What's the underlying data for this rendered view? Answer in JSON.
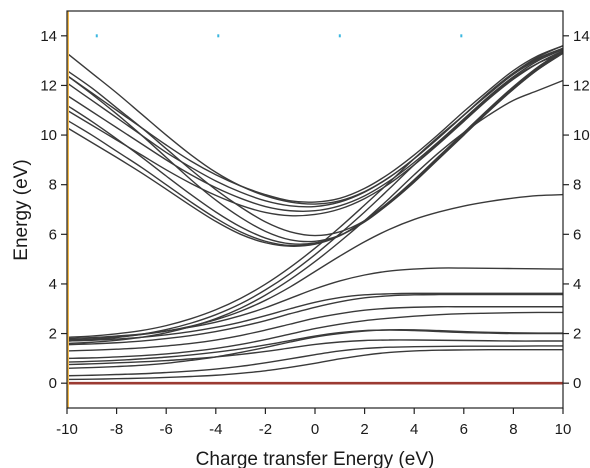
{
  "chart_data": {
    "type": "line",
    "title": "",
    "xlabel": "Charge transfer Energy (eV)",
    "ylabel": "Energy (eV)",
    "xlim": [
      -10,
      10
    ],
    "ylim": [
      -1,
      15
    ],
    "x_ticks": [
      -10,
      -8,
      -6,
      -4,
      -2,
      0,
      2,
      4,
      6,
      8,
      10
    ],
    "y_ticks": [
      0,
      2,
      4,
      6,
      8,
      10,
      12,
      14
    ],
    "right_y_ticks": [
      0,
      2,
      4,
      6,
      8,
      10,
      12,
      14
    ],
    "grid": false,
    "legend": "none",
    "colors": {
      "lines": "#3a3a3a",
      "ground_state": "#9b3a32",
      "left_edge": "#f2b84b",
      "markers": "#3bb7e0",
      "axes": "#222222"
    },
    "markers": {
      "x": [
        -8.8,
        -3.9,
        1.0,
        5.9
      ],
      "y": 14.0
    },
    "ground_state": {
      "x": [
        -10,
        10
      ],
      "y": [
        0,
        0
      ]
    },
    "x": [
      -10,
      -9,
      -8,
      -7,
      -6,
      -5,
      -4,
      -3,
      -2,
      -1,
      0,
      1,
      2,
      3,
      4,
      5,
      6,
      7,
      8,
      9,
      10
    ],
    "series": [
      {
        "values": [
          0.15,
          0.16,
          0.18,
          0.2,
          0.23,
          0.27,
          0.32,
          0.4,
          0.5,
          0.64,
          0.8,
          0.98,
          1.13,
          1.24,
          1.3,
          1.33,
          1.34,
          1.35,
          1.35,
          1.35,
          1.35
        ]
      },
      {
        "values": [
          0.3,
          0.32,
          0.35,
          0.38,
          0.43,
          0.49,
          0.57,
          0.68,
          0.82,
          0.98,
          1.15,
          1.3,
          1.4,
          1.45,
          1.47,
          1.48,
          1.49,
          1.49,
          1.49,
          1.5,
          1.5
        ]
      },
      {
        "values": [
          0.75,
          0.78,
          0.82,
          0.86,
          0.91,
          0.98,
          1.06,
          1.16,
          1.28,
          1.42,
          1.56,
          1.66,
          1.72,
          1.74,
          1.74,
          1.73,
          1.72,
          1.71,
          1.7,
          1.7,
          1.7
        ]
      },
      {
        "values": [
          0.85,
          0.88,
          0.92,
          0.98,
          1.05,
          1.14,
          1.25,
          1.38,
          1.54,
          1.72,
          1.9,
          2.04,
          2.12,
          2.14,
          2.12,
          2.08,
          2.04,
          2.02,
          2.0,
          2.0,
          2.0
        ]
      },
      {
        "values": [
          0.6,
          0.63,
          0.67,
          0.72,
          0.8,
          0.92,
          1.06,
          1.24,
          1.44,
          1.66,
          1.86,
          2.0,
          2.1,
          2.15,
          2.15,
          2.12,
          2.08,
          2.05,
          2.03,
          2.02,
          2.02
        ]
      },
      {
        "values": [
          1.0,
          1.02,
          1.06,
          1.11,
          1.18,
          1.28,
          1.4,
          1.56,
          1.76,
          1.98,
          2.2,
          2.38,
          2.52,
          2.62,
          2.7,
          2.76,
          2.8,
          2.82,
          2.84,
          2.85,
          2.85
        ]
      },
      {
        "values": [
          1.3,
          1.33,
          1.37,
          1.42,
          1.5,
          1.6,
          1.74,
          1.92,
          2.14,
          2.38,
          2.62,
          2.8,
          2.94,
          3.02,
          3.06,
          3.08,
          3.08,
          3.08,
          3.08,
          3.08,
          3.08
        ]
      },
      {
        "values": [
          1.55,
          1.58,
          1.63,
          1.7,
          1.8,
          1.92,
          2.08,
          2.28,
          2.52,
          2.8,
          3.06,
          3.28,
          3.44,
          3.52,
          3.56,
          3.57,
          3.57,
          3.57,
          3.57,
          3.57,
          3.57
        ]
      },
      {
        "values": [
          1.7,
          1.73,
          1.78,
          1.85,
          1.95,
          2.08,
          2.25,
          2.46,
          2.72,
          3.0,
          3.26,
          3.45,
          3.56,
          3.6,
          3.62,
          3.62,
          3.62,
          3.62,
          3.62,
          3.62,
          3.62
        ]
      },
      {
        "values": [
          1.8,
          1.84,
          1.9,
          1.98,
          2.1,
          2.26,
          2.46,
          2.72,
          3.04,
          3.42,
          3.8,
          4.12,
          4.36,
          4.52,
          4.6,
          4.64,
          4.64,
          4.63,
          4.62,
          4.61,
          4.6
        ]
      },
      {
        "values": [
          1.75,
          1.79,
          1.86,
          1.96,
          2.1,
          2.3,
          2.56,
          2.9,
          3.34,
          3.88,
          4.5,
          5.12,
          5.7,
          6.2,
          6.6,
          6.9,
          7.14,
          7.32,
          7.46,
          7.56,
          7.6
        ]
      },
      {
        "values": [
          1.6,
          1.65,
          1.73,
          1.85,
          2.03,
          2.28,
          2.6,
          3.02,
          3.55,
          4.18,
          4.9,
          5.7,
          6.55,
          7.45,
          8.4,
          9.3,
          10.1,
          10.8,
          11.4,
          11.8,
          12.2
        ]
      },
      {
        "values": [
          1.7,
          1.75,
          1.84,
          1.97,
          2.16,
          2.42,
          2.76,
          3.2,
          3.76,
          4.42,
          5.18,
          6.02,
          6.9,
          7.84,
          8.8,
          9.7,
          10.6,
          11.5,
          12.3,
          12.9,
          13.3
        ]
      },
      {
        "values": [
          1.85,
          1.9,
          1.99,
          2.12,
          2.32,
          2.6,
          2.96,
          3.42,
          3.99,
          4.67,
          5.44,
          6.28,
          7.18,
          8.1,
          9.05,
          9.95,
          10.8,
          11.7,
          12.5,
          13.1,
          13.5
        ]
      },
      {
        "values": [
          12.4,
          11.7,
          11.0,
          10.3,
          9.6,
          8.95,
          8.4,
          7.95,
          7.6,
          7.35,
          7.3,
          7.45,
          7.85,
          8.45,
          9.2,
          10.05,
          10.95,
          11.8,
          12.6,
          13.2,
          13.6
        ]
      },
      {
        "values": [
          12.1,
          11.4,
          10.7,
          10.0,
          9.3,
          8.7,
          8.15,
          7.7,
          7.35,
          7.15,
          7.12,
          7.3,
          7.7,
          8.3,
          9.05,
          9.9,
          10.8,
          11.65,
          12.45,
          13.05,
          13.5
        ]
      },
      {
        "values": [
          11.6,
          10.95,
          10.3,
          9.65,
          9.0,
          8.4,
          7.88,
          7.45,
          7.12,
          6.95,
          6.95,
          7.15,
          7.55,
          8.15,
          8.9,
          9.75,
          10.65,
          11.55,
          12.35,
          13.0,
          13.45
        ]
      },
      {
        "values": [
          11.0,
          10.4,
          9.8,
          9.2,
          8.6,
          8.05,
          7.57,
          7.17,
          6.88,
          6.75,
          6.8,
          7.02,
          7.44,
          8.04,
          8.8,
          9.65,
          10.55,
          11.45,
          12.25,
          12.9,
          13.4
        ]
      },
      {
        "values": [
          12.6,
          11.9,
          11.1,
          10.3,
          9.45,
          8.6,
          7.8,
          7.1,
          6.5,
          6.1,
          5.95,
          6.1,
          6.55,
          7.25,
          8.1,
          9.05,
          10.0,
          10.95,
          11.85,
          12.65,
          13.3
        ]
      },
      {
        "values": [
          12.4,
          11.65,
          10.85,
          10.0,
          9.1,
          8.2,
          7.38,
          6.68,
          6.12,
          5.78,
          5.72,
          5.96,
          6.5,
          7.25,
          8.12,
          9.05,
          10.0,
          10.95,
          11.85,
          12.65,
          13.3
        ]
      },
      {
        "values": [
          11.2,
          10.55,
          9.85,
          9.12,
          8.35,
          7.6,
          6.9,
          6.3,
          5.85,
          5.62,
          5.65,
          5.95,
          6.52,
          7.28,
          8.15,
          9.1,
          10.05,
          11.0,
          11.9,
          12.7,
          13.35
        ]
      },
      {
        "values": [
          10.6,
          10.0,
          9.35,
          8.7,
          8.0,
          7.3,
          6.65,
          6.1,
          5.72,
          5.55,
          5.62,
          5.95,
          6.55,
          7.3,
          8.18,
          9.12,
          10.08,
          11.02,
          11.92,
          12.72,
          13.38
        ]
      },
      {
        "values": [
          10.3,
          9.7,
          9.1,
          8.48,
          7.82,
          7.15,
          6.52,
          6.0,
          5.66,
          5.52,
          5.6,
          5.94,
          6.55,
          7.32,
          8.2,
          9.15,
          10.1,
          11.05,
          11.95,
          12.75,
          13.4
        ]
      },
      {
        "values": [
          13.3,
          12.5,
          11.7,
          10.85,
          10.0,
          9.2,
          8.5,
          7.95,
          7.55,
          7.3,
          7.22,
          7.35,
          7.72,
          8.3,
          9.05,
          9.9,
          10.8,
          11.7,
          12.5,
          13.15,
          13.6
        ]
      }
    ]
  }
}
